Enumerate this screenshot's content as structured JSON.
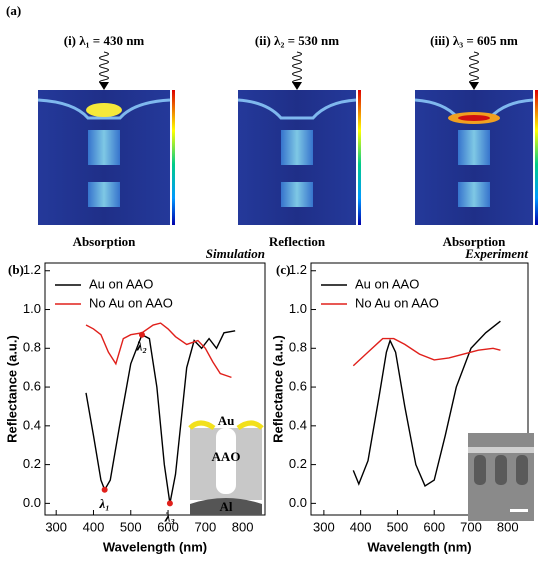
{
  "figure_a": {
    "label": "(a)",
    "panels": [
      {
        "title": "(i) λ₁ = 430 nm",
        "caption": "Absorption"
      },
      {
        "title": "(ii) λ₂ = 530 nm",
        "caption": "Reflection"
      },
      {
        "title": "(iii) λ₃ = 605 nm",
        "caption": "Absorption"
      }
    ]
  },
  "chart_data": [
    {
      "type": "line",
      "panel": "(b)",
      "annotation": "Simulation",
      "xlabel": "Wavelength (nm)",
      "ylabel": "Reflectance (a.u.)",
      "xlim": [
        270,
        860
      ],
      "xticks": [
        300,
        400,
        500,
        600,
        700,
        800
      ],
      "ylim": [
        -0.06,
        1.24
      ],
      "yticks": [
        {
          "value": 0,
          "label": "0.0"
        },
        0.2,
        0.4,
        0.6,
        0.8,
        {
          "value": 1,
          "label": "1.0"
        },
        1.2
      ],
      "legend": "upper left",
      "series": [
        {
          "name": "Au on AAO",
          "color": "#000000",
          "x": [
            380,
            400,
            420,
            430,
            445,
            470,
            500,
            530,
            550,
            570,
            590,
            605,
            620,
            650,
            670,
            690,
            710,
            730,
            750,
            780
          ],
          "values": [
            0.57,
            0.35,
            0.12,
            0.07,
            0.12,
            0.4,
            0.72,
            0.87,
            0.85,
            0.6,
            0.2,
            0.0,
            0.15,
            0.7,
            0.84,
            0.8,
            0.85,
            0.8,
            0.88,
            0.89
          ]
        },
        {
          "name": "No Au on AAO",
          "color": "#e0201b",
          "x": [
            380,
            400,
            420,
            440,
            460,
            480,
            500,
            530,
            560,
            580,
            600,
            620,
            650,
            680,
            700,
            720,
            740,
            770
          ],
          "values": [
            0.92,
            0.9,
            0.87,
            0.78,
            0.72,
            0.85,
            0.87,
            0.88,
            0.92,
            0.93,
            0.9,
            0.86,
            0.82,
            0.84,
            0.8,
            0.73,
            0.67,
            0.65
          ]
        }
      ],
      "points": [
        {
          "label": "λ₁",
          "x": 430,
          "y": 0.07
        },
        {
          "label": "λ₂",
          "x": 530,
          "y": 0.87
        },
        {
          "label": "λ₃",
          "x": 605,
          "y": 0.0
        }
      ],
      "inset_labels": [
        "Au",
        "AAO",
        "Al"
      ]
    },
    {
      "type": "line",
      "panel": "(c)",
      "annotation": "Experiment",
      "xlabel": "Wavelength (nm)",
      "ylabel": "Reflectance (a.u.)",
      "xlim": [
        265,
        855
      ],
      "xticks": [
        300,
        400,
        500,
        600,
        700,
        800
      ],
      "ylim": [
        -0.06,
        1.24
      ],
      "yticks": [
        {
          "value": 0,
          "label": "0.0"
        },
        0.2,
        0.4,
        0.6,
        0.8,
        {
          "value": 1,
          "label": "1.0"
        },
        1.2
      ],
      "legend": "upper left",
      "series": [
        {
          "name": "Au on AAO",
          "color": "#000000",
          "x": [
            380,
            395,
            420,
            450,
            470,
            480,
            495,
            520,
            550,
            575,
            600,
            630,
            660,
            700,
            740,
            780
          ],
          "values": [
            0.17,
            0.1,
            0.22,
            0.55,
            0.78,
            0.84,
            0.78,
            0.5,
            0.2,
            0.09,
            0.12,
            0.35,
            0.6,
            0.8,
            0.88,
            0.94
          ]
        },
        {
          "name": "No Au on AAO",
          "color": "#e0201b",
          "x": [
            380,
            420,
            460,
            490,
            520,
            560,
            600,
            640,
            680,
            720,
            760,
            780
          ],
          "values": [
            0.71,
            0.78,
            0.85,
            0.85,
            0.82,
            0.77,
            0.74,
            0.75,
            0.77,
            0.79,
            0.8,
            0.79
          ]
        }
      ]
    }
  ]
}
